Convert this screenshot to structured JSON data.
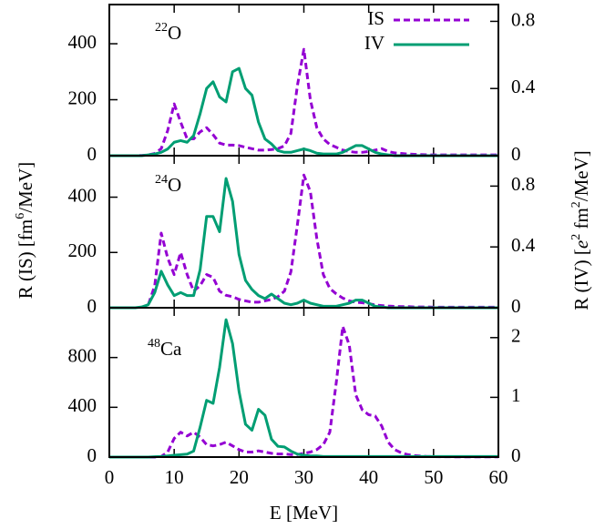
{
  "chart_data": [
    {
      "type": "line",
      "annotation": {
        "sup": "22",
        "text": "O"
      },
      "legend": "upper right",
      "x": [
        0,
        1,
        2,
        3,
        4,
        5,
        6,
        7,
        8,
        9,
        10,
        11,
        12,
        13,
        14,
        15,
        16,
        17,
        18,
        19,
        20,
        21,
        22,
        23,
        24,
        25,
        26,
        27,
        28,
        29,
        30,
        31,
        32,
        33,
        34,
        35,
        36,
        37,
        38,
        39,
        40,
        41,
        42,
        43,
        44,
        45,
        46,
        47,
        48,
        49,
        50,
        51,
        52,
        53,
        54,
        55,
        56,
        57,
        58,
        59,
        60
      ],
      "xlim": [
        0,
        60
      ],
      "xticks": [
        0,
        10,
        20,
        30,
        40,
        50,
        60
      ],
      "ylim": [
        0,
        540
      ],
      "yticks": [
        0,
        200,
        400
      ],
      "y2lim": [
        0,
        0.9
      ],
      "y2ticks": [
        0,
        0.4,
        0.8
      ],
      "series": [
        {
          "name": "IS",
          "color": "#9400d3",
          "dashed": true,
          "values": [
            0,
            0,
            0,
            0,
            0,
            1,
            3,
            8,
            25,
            90,
            185,
            120,
            60,
            60,
            85,
            100,
            75,
            45,
            38,
            38,
            36,
            30,
            25,
            20,
            20,
            22,
            25,
            35,
            80,
            250,
            380,
            200,
            100,
            60,
            40,
            30,
            20,
            15,
            12,
            12,
            15,
            20,
            25,
            15,
            10,
            8,
            6,
            5,
            4,
            3,
            3,
            3,
            3,
            3,
            3,
            3,
            3,
            3,
            3,
            3,
            3
          ]
        },
        {
          "name": "IV",
          "color": "#009e73",
          "axis": "y2",
          "values": [
            0,
            0,
            0,
            0,
            0,
            0,
            0.005,
            0.01,
            0.02,
            0.04,
            0.08,
            0.09,
            0.08,
            0.12,
            0.25,
            0.4,
            0.44,
            0.35,
            0.32,
            0.5,
            0.52,
            0.4,
            0.36,
            0.2,
            0.1,
            0.07,
            0.03,
            0.02,
            0.02,
            0.03,
            0.04,
            0.03,
            0.015,
            0.01,
            0.01,
            0.01,
            0.02,
            0.04,
            0.06,
            0.06,
            0.04,
            0.02,
            0.01,
            0.005,
            0,
            0,
            0,
            0,
            0,
            0,
            0,
            0,
            0,
            0,
            0,
            0,
            0,
            0,
            0,
            0,
            0
          ]
        }
      ]
    },
    {
      "type": "line",
      "annotation": {
        "sup": "24",
        "text": "O"
      },
      "ylabel": [
        "R (IS) [fm",
        "6",
        "/MeV]"
      ],
      "y2label": [
        "R (IV) [",
        "e",
        "2",
        " fm",
        "2",
        "/MeV]"
      ],
      "x": [
        0,
        1,
        2,
        3,
        4,
        5,
        6,
        7,
        8,
        9,
        10,
        11,
        12,
        13,
        14,
        15,
        16,
        17,
        18,
        19,
        20,
        21,
        22,
        23,
        24,
        25,
        26,
        27,
        28,
        29,
        30,
        31,
        32,
        33,
        34,
        35,
        36,
        37,
        38,
        39,
        40,
        41,
        42,
        43,
        44,
        45,
        46,
        47,
        48,
        49,
        50,
        51,
        52,
        53,
        54,
        55,
        56,
        57,
        58,
        59,
        60
      ],
      "xlim": [
        0,
        60
      ],
      "xticks": [
        0,
        10,
        20,
        30,
        40,
        50,
        60
      ],
      "ylim": [
        0,
        550
      ],
      "yticks": [
        0,
        200,
        400
      ],
      "y2lim": [
        0,
        1
      ],
      "y2ticks": [
        0,
        0.4,
        0.8
      ],
      "series": [
        {
          "color": "#9400d3",
          "dashed": true,
          "values": [
            0,
            0,
            0,
            0,
            0,
            2,
            10,
            80,
            270,
            180,
            120,
            200,
            120,
            60,
            80,
            120,
            110,
            60,
            45,
            40,
            30,
            25,
            20,
            20,
            25,
            30,
            40,
            60,
            130,
            300,
            480,
            420,
            250,
            120,
            70,
            50,
            35,
            25,
            20,
            18,
            15,
            10,
            8,
            6,
            5,
            4,
            4,
            3,
            3,
            3,
            2,
            2,
            2,
            2,
            2,
            2,
            2,
            2,
            2,
            2,
            2
          ]
        },
        {
          "color": "#009e73",
          "axis": "y2",
          "values": [
            0,
            0,
            0,
            0,
            0,
            0.005,
            0.02,
            0.1,
            0.24,
            0.15,
            0.08,
            0.1,
            0.08,
            0.08,
            0.25,
            0.6,
            0.6,
            0.5,
            0.85,
            0.7,
            0.35,
            0.18,
            0.12,
            0.08,
            0.06,
            0.09,
            0.06,
            0.03,
            0.02,
            0.03,
            0.05,
            0.03,
            0.02,
            0.01,
            0.01,
            0.01,
            0.02,
            0.03,
            0.05,
            0.05,
            0.03,
            0.01,
            0.005,
            0,
            0,
            0,
            0,
            0,
            0,
            0,
            0,
            0,
            0,
            0,
            0,
            0,
            0,
            0,
            0,
            0,
            0
          ]
        }
      ]
    },
    {
      "type": "line",
      "annotation": {
        "sup": "48",
        "text": "Ca"
      },
      "xlabel": "E [MeV]",
      "x": [
        0,
        1,
        2,
        3,
        4,
        5,
        6,
        7,
        8,
        9,
        10,
        11,
        12,
        13,
        14,
        15,
        16,
        17,
        18,
        19,
        20,
        21,
        22,
        23,
        24,
        25,
        26,
        27,
        28,
        29,
        30,
        31,
        32,
        33,
        34,
        35,
        36,
        37,
        38,
        39,
        40,
        41,
        42,
        43,
        44,
        45,
        46,
        47,
        48,
        49,
        50,
        51,
        52,
        53,
        54,
        55,
        56,
        57,
        58,
        59,
        60
      ],
      "xlim": [
        0,
        60
      ],
      "xticks": [
        0,
        10,
        20,
        30,
        40,
        50,
        60
      ],
      "ylim": [
        0,
        1200
      ],
      "yticks": [
        0,
        400,
        800
      ],
      "y2lim": [
        0,
        2.5
      ],
      "y2ticks": [
        0,
        1,
        2
      ],
      "series": [
        {
          "color": "#9400d3",
          "dashed": true,
          "values": [
            0,
            0,
            0,
            0,
            0,
            0,
            0,
            0,
            5,
            40,
            150,
            200,
            170,
            200,
            160,
            100,
            90,
            100,
            120,
            90,
            60,
            40,
            40,
            50,
            40,
            30,
            25,
            25,
            20,
            20,
            30,
            40,
            60,
            100,
            200,
            600,
            1050,
            900,
            500,
            380,
            340,
            330,
            250,
            120,
            60,
            35,
            20,
            12,
            8,
            5,
            4,
            3,
            3,
            2,
            2,
            2,
            2,
            2,
            2,
            2,
            2
          ]
        },
        {
          "color": "#009e73",
          "axis": "y2",
          "values": [
            0,
            0,
            0,
            0,
            0,
            0,
            0,
            0.005,
            0.01,
            0.02,
            0.03,
            0.04,
            0.05,
            0.1,
            0.5,
            0.95,
            0.9,
            1.5,
            2.3,
            1.9,
            1.1,
            0.55,
            0.45,
            0.8,
            0.7,
            0.3,
            0.18,
            0.17,
            0.1,
            0.05,
            0.03,
            0.02,
            0.02,
            0.01,
            0.01,
            0.01,
            0.01,
            0.01,
            0.01,
            0.01,
            0.01,
            0.01,
            0.01,
            0.01,
            0.01,
            0.01,
            0.01,
            0.01,
            0.01,
            0.01,
            0.01,
            0.01,
            0.01,
            0.01,
            0.01,
            0.01,
            0.01,
            0.01,
            0.01,
            0.01,
            0.01
          ]
        }
      ]
    }
  ]
}
